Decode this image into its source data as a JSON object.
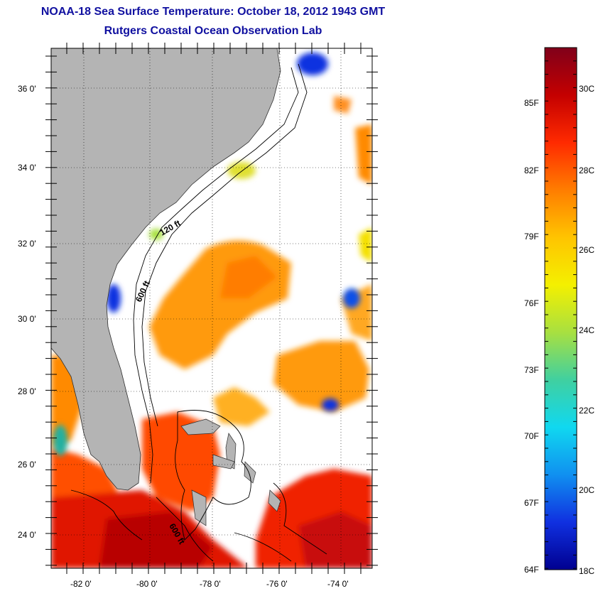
{
  "title": "NOAA-18 Sea Surface Temperature:  October 18, 2012 1943 GMT",
  "subtitle": "Rutgers Coastal Ocean Observation Lab",
  "map": {
    "lat_ticks": [
      "36 0'",
      "34 0'",
      "32 0'",
      "30 0'",
      "28 0'",
      "26 0'",
      "24 0'"
    ],
    "lon_ticks": [
      "-82 0'",
      "-80 0'",
      "-78 0'",
      "-76 0'",
      "-74 0'"
    ],
    "contour_labels": [
      "120 ft",
      "600 ft",
      "600 ft"
    ]
  },
  "colorbar": {
    "fahrenheit_labels": [
      "85F",
      "82F",
      "79F",
      "76F",
      "73F",
      "70F",
      "67F",
      "64F"
    ],
    "celsius_labels": [
      "30C",
      "28C",
      "26C",
      "24C",
      "22C",
      "20C",
      "18C"
    ],
    "colors": [
      "#80001a",
      "#c40000",
      "#ff2a00",
      "#ff7d00",
      "#ffc400",
      "#f4f000",
      "#a8e040",
      "#40d0a0",
      "#10d8f0",
      "#1090f0",
      "#1030e0",
      "#000090"
    ]
  },
  "colors": {
    "land": "#b4b4b4",
    "cloud": "#ffffff",
    "title": "#1010a0"
  }
}
